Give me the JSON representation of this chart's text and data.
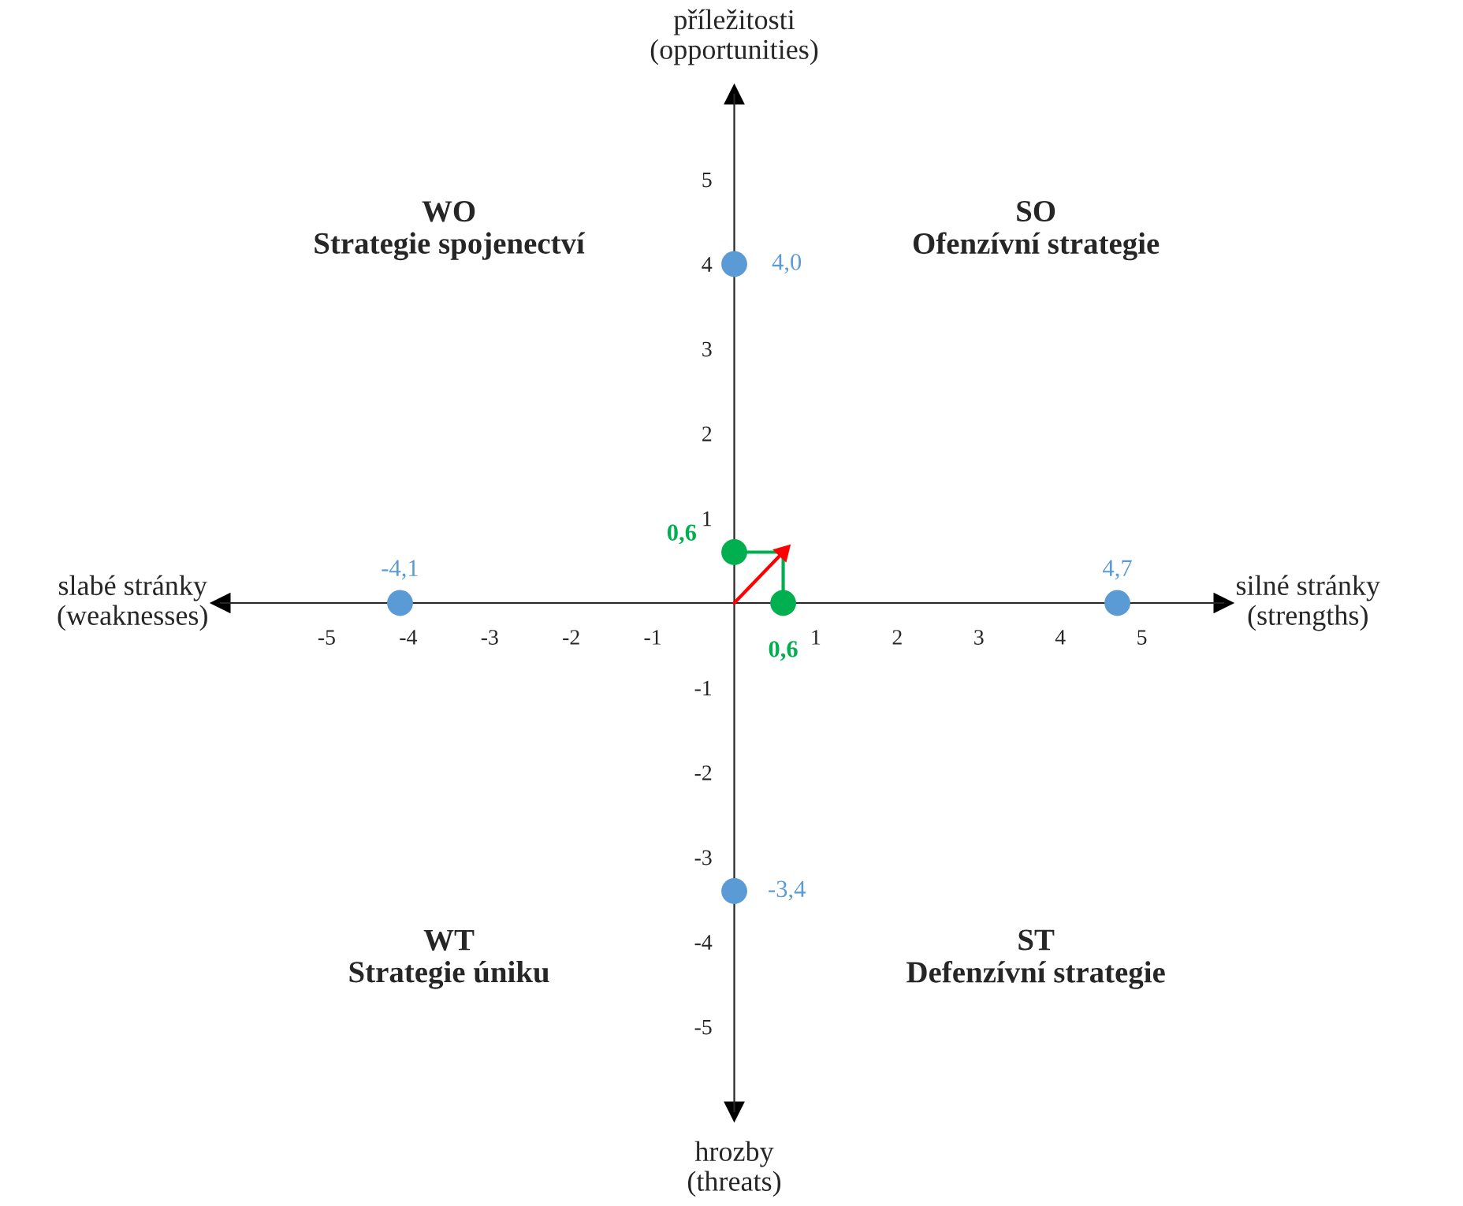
{
  "chart_data": {
    "type": "scatter",
    "xlim": [
      -6.3,
      6
    ],
    "ylim": [
      -6,
      6
    ],
    "xticks": [
      -5,
      -4,
      -3,
      -2,
      -1,
      1,
      2,
      3,
      4,
      5
    ],
    "yticks": [
      -5,
      -4,
      -3,
      -2,
      -1,
      1,
      2,
      3,
      4,
      5
    ],
    "grid": false,
    "marker": "circle",
    "series": [
      {
        "color": "#5b9bd5",
        "x": [
          4.7,
          -4.1,
          0,
          0
        ],
        "values": [
          0,
          0,
          4.0,
          -3.4
        ]
      },
      {
        "type": "line",
        "color": "#00b050",
        "marker": "none",
        "x": [
          0,
          0.6,
          0.6
        ],
        "values": [
          0.6,
          0.6,
          0
        ]
      },
      {
        "color": "#00b050",
        "x": [
          0,
          0.6
        ],
        "values": [
          0.6,
          0
        ]
      },
      {
        "type": "line",
        "color": "#ff0000",
        "marker": "triangle",
        "x": [
          0,
          0.6
        ],
        "values": [
          0,
          0.6
        ]
      }
    ],
    "annotations": [
      "příležitosti\n(opportunities)",
      "hrozby\n(threats)",
      "slabé stránky\n(weaknesses)",
      "silné stránky\n(strengths)",
      "WO\nStrategie spojenectví",
      "SO\nOfenzívní strategie",
      "WT\nStrategie úniku",
      "ST\nDefenzívní strategie",
      {
        "text": "4,7",
        "x": 4.7,
        "y": 0
      },
      {
        "text": "-4,1",
        "x": -4.1,
        "y": 0
      },
      {
        "text": "4,0",
        "x": 0,
        "y": 4.0
      },
      {
        "text": "-3,4",
        "x": 0,
        "y": -3.4
      },
      {
        "text": "0,6",
        "x": 0,
        "y": 0.6
      },
      {
        "text": "0,6",
        "x": 0.6,
        "y": 0
      }
    ]
  }
}
